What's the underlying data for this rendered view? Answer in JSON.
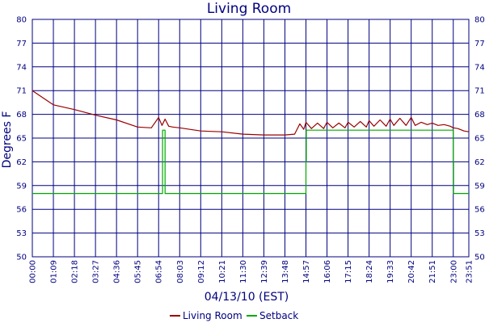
{
  "chart_data": {
    "type": "line",
    "title": "Living Room",
    "xlabel": "04/13/10 (EST)",
    "ylabel": "Degrees F",
    "x_ticks": [
      "00:00",
      "01:09",
      "02:18",
      "03:27",
      "04:36",
      "05:45",
      "06:54",
      "08:03",
      "09:12",
      "10:21",
      "11:30",
      "12:39",
      "13:48",
      "14:57",
      "16:06",
      "17:15",
      "18:24",
      "19:33",
      "20:42",
      "21:51",
      "23:00",
      "23:51"
    ],
    "y_ticks": [
      50,
      53,
      56,
      59,
      62,
      65,
      68,
      71,
      74,
      77,
      80
    ],
    "xlim": [
      "00:00",
      "23:51"
    ],
    "ylim": [
      50,
      80
    ],
    "grid": true,
    "legend_position": "bottom-center",
    "series": [
      {
        "name": "Living Room",
        "color": "#990000",
        "x": [
          "00:00",
          "01:09",
          "02:18",
          "03:27",
          "04:36",
          "05:45",
          "06:30",
          "06:54",
          "07:05",
          "07:15",
          "07:27",
          "07:40",
          "08:03",
          "09:12",
          "10:21",
          "11:30",
          "12:39",
          "13:48",
          "14:20",
          "14:37",
          "14:50",
          "14:57",
          "15:15",
          "15:35",
          "15:55",
          "16:06",
          "16:25",
          "16:45",
          "17:05",
          "17:15",
          "17:35",
          "17:55",
          "18:15",
          "18:24",
          "18:40",
          "19:00",
          "19:20",
          "19:33",
          "19:45",
          "20:05",
          "20:25",
          "20:42",
          "20:55",
          "21:15",
          "21:35",
          "21:51",
          "22:10",
          "22:30",
          "22:50",
          "23:00",
          "23:15",
          "23:35",
          "23:51"
        ],
        "values": [
          71.0,
          69.2,
          68.6,
          67.9,
          67.3,
          66.4,
          66.3,
          67.6,
          66.6,
          67.4,
          66.5,
          66.4,
          66.3,
          65.9,
          65.8,
          65.5,
          65.4,
          65.4,
          65.5,
          66.8,
          66.1,
          67.0,
          66.2,
          66.9,
          66.2,
          67.0,
          66.3,
          66.9,
          66.3,
          67.0,
          66.4,
          67.1,
          66.4,
          67.2,
          66.5,
          67.3,
          66.5,
          67.4,
          66.6,
          67.5,
          66.6,
          67.6,
          66.6,
          67.0,
          66.7,
          66.9,
          66.6,
          66.7,
          66.5,
          66.3,
          66.2,
          65.9,
          65.8
        ]
      },
      {
        "name": "Setback",
        "color": "#00aa00",
        "x": [
          "00:00",
          "06:54",
          "07:07",
          "07:07",
          "07:15",
          "07:15",
          "07:30",
          "07:30",
          "14:57",
          "14:57",
          "14:58",
          "14:58",
          "23:00",
          "23:00",
          "23:01",
          "23:01",
          "23:51"
        ],
        "values": [
          58.0,
          58.0,
          58.0,
          66.0,
          66.0,
          58.0,
          58.0,
          58.0,
          58.0,
          62.0,
          62.0,
          66.0,
          66.0,
          62.0,
          62.0,
          58.0,
          58.0
        ]
      }
    ]
  }
}
